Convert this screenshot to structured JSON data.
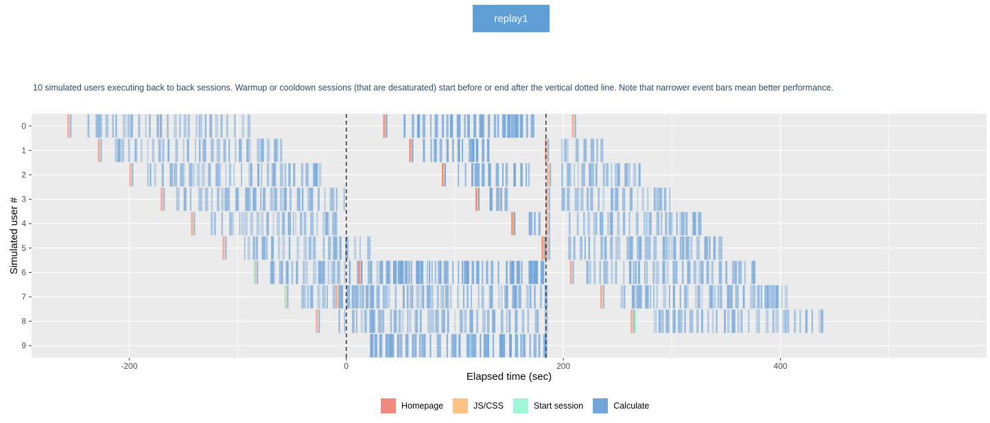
{
  "tab": {
    "label": "replay1"
  },
  "description": "10 simulated users executing back to back sessions. Warmup or cooldown sessions (that are desaturated) start before or end after the vertical dotted line. Note that narrower event bars mean better performance.",
  "colors": {
    "homepage": "#f08a7e",
    "jscss": "#fdc286",
    "start_session": "#9ff7d8",
    "calculate": "#72a6da",
    "panel_bg": "#ebebeb",
    "grid": "#ffffff"
  },
  "chart_data": {
    "type": "timeline",
    "xlabel": "Elapsed time (sec)",
    "ylabel": "Simulated user #",
    "xlim": [
      -290,
      590
    ],
    "x_ticks": [
      -200,
      0,
      200,
      400
    ],
    "x_tick_labels": [
      "-200",
      "0",
      "200",
      "400"
    ],
    "y_categories": [
      "0",
      "1",
      "2",
      "3",
      "4",
      "5",
      "6",
      "7",
      "8",
      "9"
    ],
    "vlines": [
      0,
      184
    ],
    "grid": true,
    "legend_position": "bottom",
    "legend": [
      {
        "name": "Homepage",
        "color": "#f08a7e"
      },
      {
        "name": "JS/CSS",
        "color": "#fdc286"
      },
      {
        "name": "Start session",
        "color": "#9ff7d8"
      },
      {
        "name": "Calculate",
        "color": "#72a6da"
      }
    ],
    "sessions": [
      {
        "user": 0,
        "starts": [
          -257,
          34,
          208
        ],
        "ends": [
          -90,
          170,
          216
        ]
      },
      {
        "user": 1,
        "starts": [
          -229,
          58,
          183
        ],
        "ends": [
          -60,
          135,
          240
        ]
      },
      {
        "user": 2,
        "starts": [
          -200,
          88,
          185
        ],
        "ends": [
          -25,
          170,
          270
        ]
      },
      {
        "user": 3,
        "starts": [
          -171,
          119,
          184
        ],
        "ends": [
          0,
          152,
          300
        ]
      },
      {
        "user": 4,
        "starts": [
          -143,
          152,
          184
        ],
        "ends": [
          -5,
          182,
          330
        ]
      },
      {
        "user": 5,
        "starts": [
          -114,
          180,
          184
        ],
        "ends": [
          22,
          184,
          350
        ]
      },
      {
        "user": 6,
        "starts": [
          -85,
          11,
          206
        ],
        "ends": [
          92,
          184,
          380
        ]
      },
      {
        "user": 7,
        "starts": [
          -57,
          -10,
          234
        ],
        "ends": [
          28,
          184,
          408
        ]
      },
      {
        "user": 8,
        "starts": [
          -28,
          262
        ],
        "ends": [
          184,
          440
        ]
      },
      {
        "user": 9,
        "starts": [
          1
        ],
        "ends": [
          184
        ]
      }
    ]
  }
}
